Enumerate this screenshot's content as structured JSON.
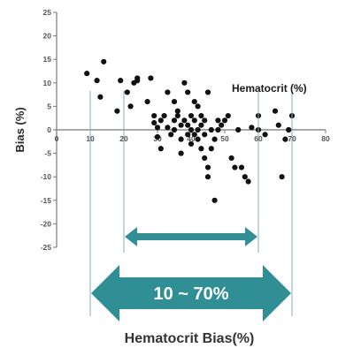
{
  "chart_data": {
    "type": "scatter",
    "xlabel": "Hematocrit (%)",
    "ylabel": "Bias (%)",
    "xlim": [
      0,
      80
    ],
    "ylim": [
      -25,
      25
    ],
    "xticks": [
      "0",
      "10",
      "20",
      "30",
      "40",
      "50",
      "60",
      "70",
      "80"
    ],
    "yticks": [
      "25",
      "20",
      "15",
      "10",
      "5",
      "0",
      "-5",
      "-10",
      "-15",
      "-20",
      "-25"
    ],
    "grid": false,
    "points": [
      [
        9,
        12
      ],
      [
        12,
        10.5
      ],
      [
        14,
        14.5
      ],
      [
        13,
        7
      ],
      [
        18,
        4
      ],
      [
        19,
        10.5
      ],
      [
        21,
        8
      ],
      [
        22,
        5
      ],
      [
        23,
        10
      ],
      [
        24,
        11
      ],
      [
        24,
        10.5
      ],
      [
        28,
        11
      ],
      [
        27,
        6
      ],
      [
        29,
        3
      ],
      [
        29,
        1.5
      ],
      [
        30,
        0.5
      ],
      [
        31,
        2
      ],
      [
        30,
        -1.5
      ],
      [
        31,
        -4
      ],
      [
        33,
        8
      ],
      [
        32,
        3
      ],
      [
        33,
        0.5
      ],
      [
        34,
        -1
      ],
      [
        35,
        6
      ],
      [
        35,
        2
      ],
      [
        35,
        0
      ],
      [
        36,
        3
      ],
      [
        36,
        4
      ],
      [
        37,
        1
      ],
      [
        37,
        -2
      ],
      [
        37,
        -5
      ],
      [
        38,
        10
      ],
      [
        38,
        2
      ],
      [
        39,
        8
      ],
      [
        39,
        1
      ],
      [
        39,
        -1
      ],
      [
        40,
        0
      ],
      [
        40,
        3
      ],
      [
        40,
        -3
      ],
      [
        41,
        2
      ],
      [
        41,
        6
      ],
      [
        41,
        -1
      ],
      [
        42,
        -2
      ],
      [
        42,
        0
      ],
      [
        42,
        5
      ],
      [
        43,
        -4
      ],
      [
        43,
        1
      ],
      [
        43,
        3
      ],
      [
        44,
        -6
      ],
      [
        44,
        -1
      ],
      [
        44,
        2
      ],
      [
        45,
        -8
      ],
      [
        45,
        -10
      ],
      [
        45,
        8
      ],
      [
        46,
        0
      ],
      [
        46,
        -4
      ],
      [
        47,
        -15
      ],
      [
        47,
        -2
      ],
      [
        48,
        0
      ],
      [
        48,
        2
      ],
      [
        49,
        1
      ],
      [
        50,
        2
      ],
      [
        51,
        3
      ],
      [
        52,
        -6
      ],
      [
        53,
        -8
      ],
      [
        54,
        0
      ],
      [
        55,
        -8
      ],
      [
        56,
        -10
      ],
      [
        57,
        -11
      ],
      [
        58,
        0.5
      ],
      [
        60,
        3
      ],
      [
        60,
        0
      ],
      [
        62,
        -1
      ],
      [
        65,
        4
      ],
      [
        66,
        1
      ],
      [
        67,
        -10
      ],
      [
        68,
        -2
      ],
      [
        70,
        3
      ],
      [
        69,
        0
      ]
    ],
    "annotations": {
      "inner_range_x": [
        20,
        60
      ],
      "outer_range_x": [
        10,
        70
      ],
      "outer_range_label": "10 ~ 70%",
      "caption": "Hematocrit Bias(%)"
    },
    "colors": {
      "points": "#111111",
      "axis": "#777777",
      "arrow": "#2f8f95",
      "guide_lines": "#8aaac6"
    }
  }
}
